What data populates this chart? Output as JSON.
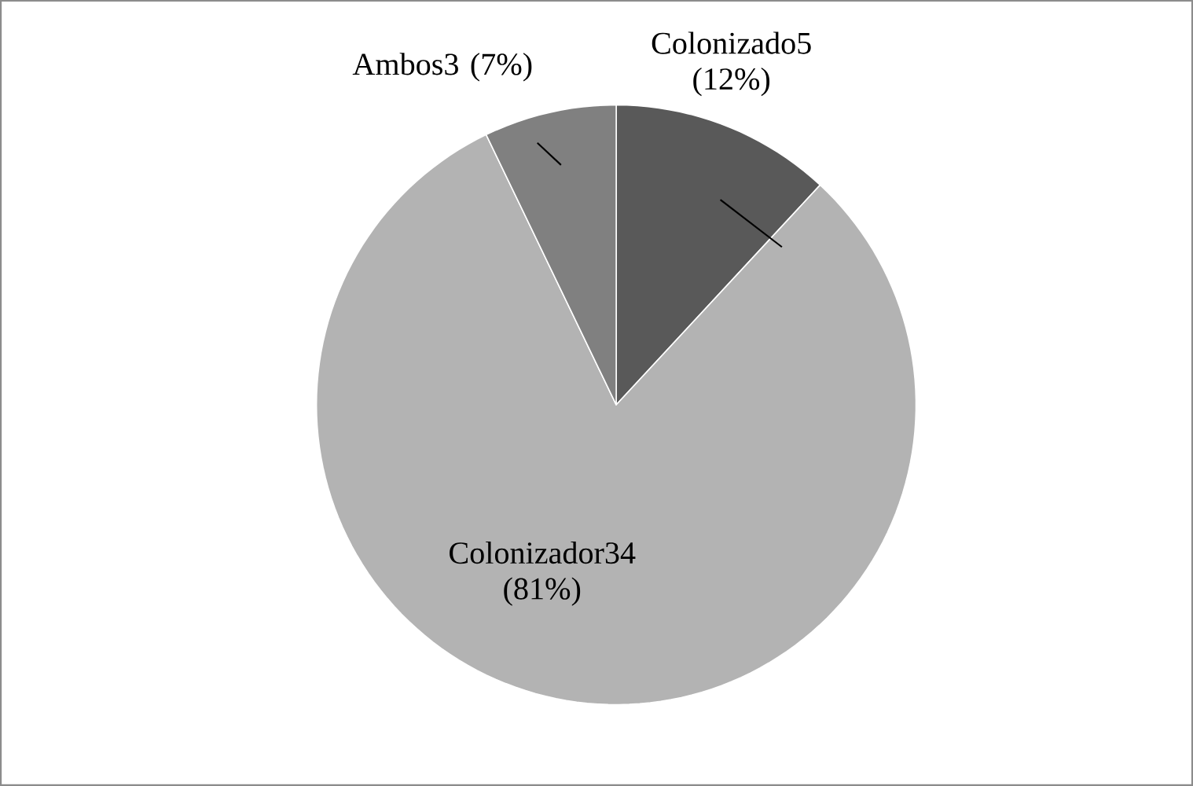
{
  "chart_data": {
    "type": "pie",
    "categories": [
      "Colonizado",
      "Colonizador",
      "Ambos"
    ],
    "values": [
      5,
      34,
      3
    ],
    "value_labels": [
      "5 (12%)",
      "34 (81%)",
      "3 (7%)"
    ],
    "colors": [
      "#595959",
      "#b3b3b3",
      "#808080"
    ],
    "legend": false
  }
}
